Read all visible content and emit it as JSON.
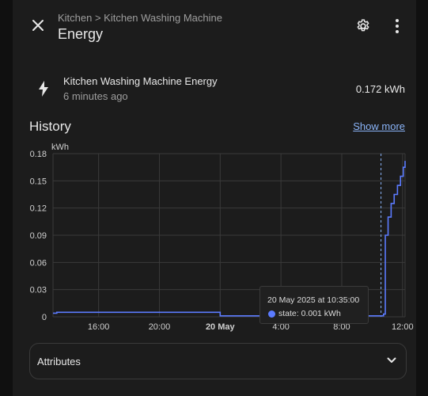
{
  "dialog": {
    "breadcrumb": "Kitchen > Kitchen Washing Machine",
    "title": "Energy",
    "icons": {
      "close": "close-icon",
      "settings": "gear-icon",
      "menu": "more-vertical-icon"
    }
  },
  "entity": {
    "icon": "lightning-bolt-icon",
    "name": "Kitchen Washing Machine Energy",
    "last_changed": "6 minutes ago",
    "value": "0.172 kWh"
  },
  "history": {
    "title": "History",
    "show_more": "Show more"
  },
  "chart_data": {
    "type": "line",
    "ylabel": "kWh",
    "ylim": [
      0,
      0.18
    ],
    "y_ticks": [
      "0",
      "0.03",
      "0.06",
      "0.09",
      "0.12",
      "0.15",
      "0.18"
    ],
    "x_range": [
      "2025-05-19 13:00",
      "2025-05-20 12:10"
    ],
    "x_ticks": [
      {
        "label": "16:00",
        "time": "2025-05-19 16:00",
        "bold": false
      },
      {
        "label": "20:00",
        "time": "2025-05-19 20:00",
        "bold": false
      },
      {
        "label": "20 May",
        "time": "2025-05-20 00:00",
        "bold": true
      },
      {
        "label": "4:00",
        "time": "2025-05-20 04:00",
        "bold": false
      },
      {
        "label": "8:00",
        "time": "2025-05-20 08:00",
        "bold": false
      },
      {
        "label": "12:00",
        "time": "2025-05-20 12:00",
        "bold": false
      }
    ],
    "series": [
      {
        "color": "#5b7bff",
        "points": [
          [
            "2025-05-19 13:00",
            0.004
          ],
          [
            "2025-05-19 13:15",
            0.005
          ],
          [
            "2025-05-19 23:59",
            0.005
          ],
          [
            "2025-05-20 00:00",
            0.001
          ],
          [
            "2025-05-20 10:35",
            0.001
          ],
          [
            "2025-05-20 10:45",
            0.003
          ],
          [
            "2025-05-20 10:52",
            0.09
          ],
          [
            "2025-05-20 11:03",
            0.11
          ],
          [
            "2025-05-20 11:15",
            0.125
          ],
          [
            "2025-05-20 11:27",
            0.135
          ],
          [
            "2025-05-20 11:40",
            0.145
          ],
          [
            "2025-05-20 11:52",
            0.155
          ],
          [
            "2025-05-20 12:03",
            0.165
          ],
          [
            "2025-05-20 12:10",
            0.172
          ]
        ]
      }
    ],
    "cursor_time": "2025-05-20 10:35",
    "tooltip": {
      "date": "20 May 2025 at 10:35:00",
      "label": "state: 0.001 kWh"
    }
  },
  "attributes": {
    "label": "Attributes",
    "icon": "chevron-down-icon"
  }
}
